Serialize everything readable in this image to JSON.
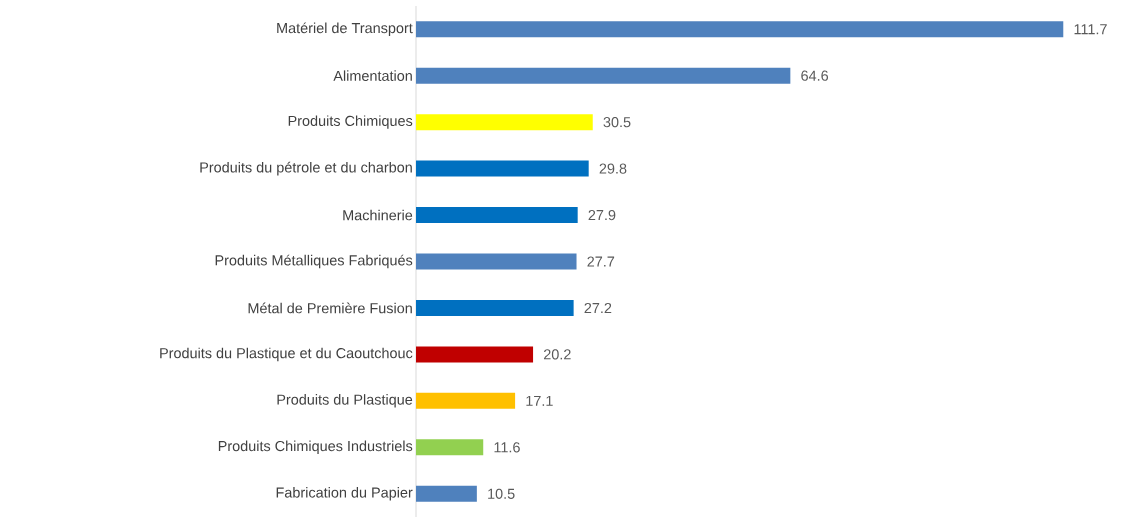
{
  "chart_data": {
    "type": "bar",
    "orientation": "horizontal",
    "data_labels": true,
    "categories": [
      "Matériel de Transport",
      "Alimentation",
      "Produits Chimiques",
      "Produits du pétrole et du charbon",
      "Machinerie",
      "Produits Métalliques Fabriqués",
      "Métal de Première Fusion",
      "Produits du Plastique et du Caoutchouc",
      "Produits du Plastique",
      "Produits Chimiques Industriels",
      "Fabrication du Papier"
    ],
    "values": [
      111.7,
      64.6,
      30.5,
      29.8,
      27.9,
      27.7,
      27.2,
      20.2,
      17.1,
      11.6,
      10.5
    ],
    "colors": [
      "#4f81bd",
      "#4f81bd",
      "#ffff00",
      "#0070c0",
      "#0070c0",
      "#4f81bd",
      "#0070c0",
      "#c00000",
      "#ffc000",
      "#92d050",
      "#4f81bd"
    ]
  }
}
